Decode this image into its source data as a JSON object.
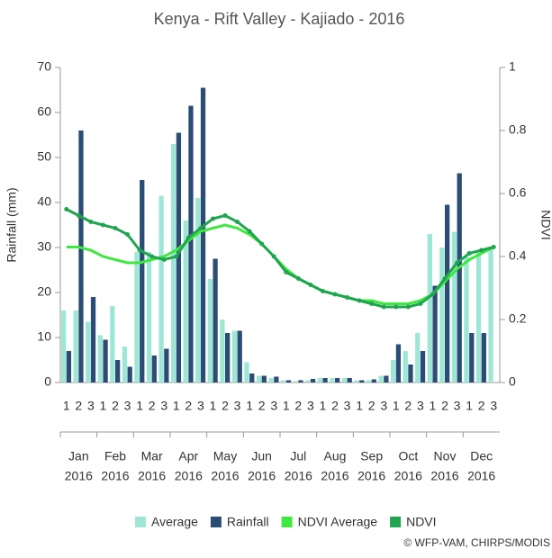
{
  "chart_data": {
    "type": "bar-line",
    "title": "Kenya - Rift Valley - Kajiado - 2016",
    "y_label": "Rainfall (mm)",
    "y2_label": "NDVI",
    "categories": [
      "1",
      "2",
      "3",
      "1",
      "2",
      "3",
      "1",
      "2",
      "3",
      "1",
      "2",
      "3",
      "1",
      "2",
      "3",
      "1",
      "2",
      "3",
      "1",
      "2",
      "3",
      "1",
      "2",
      "3",
      "1",
      "2",
      "3",
      "1",
      "2",
      "3",
      "1",
      "2",
      "3",
      "1",
      "2",
      "3"
    ],
    "months": [
      {
        "month": "Jan",
        "year": "2016"
      },
      {
        "month": "Feb",
        "year": "2016"
      },
      {
        "month": "Mar",
        "year": "2016"
      },
      {
        "month": "Apr",
        "year": "2016"
      },
      {
        "month": "May",
        "year": "2016"
      },
      {
        "month": "Jun",
        "year": "2016"
      },
      {
        "month": "Jul",
        "year": "2016"
      },
      {
        "month": "Aug",
        "year": "2016"
      },
      {
        "month": "Sep",
        "year": "2016"
      },
      {
        "month": "Oct",
        "year": "2016"
      },
      {
        "month": "Nov",
        "year": "2016"
      },
      {
        "month": "Dec",
        "year": "2016"
      }
    ],
    "series": [
      {
        "name": "Average",
        "kind": "bar",
        "color": "#9ee6d6",
        "values": [
          16,
          16,
          13.5,
          10.5,
          17,
          8,
          29,
          29,
          41.5,
          53,
          36,
          41,
          23,
          14,
          11.5,
          4.5,
          1.5,
          1,
          0.5,
          0.3,
          0.5,
          1,
          1,
          1,
          0.5,
          0.5,
          1.5,
          5,
          7,
          11,
          33,
          30,
          33.5,
          28,
          29,
          30
        ]
      },
      {
        "name": "Rainfall",
        "kind": "bar",
        "color": "#2b4c74",
        "values": [
          7,
          56,
          19,
          9.5,
          5,
          3.5,
          45,
          6,
          7.5,
          55.5,
          61.5,
          65.5,
          27.5,
          11,
          11.5,
          2,
          1.5,
          1.3,
          0.5,
          0.5,
          0.8,
          1,
          1,
          1,
          0.5,
          0.7,
          1.5,
          8.5,
          4,
          7,
          21.5,
          39.5,
          46.5,
          11,
          11,
          null
        ]
      },
      {
        "name": "NDVI Average",
        "kind": "line",
        "axis": "y2",
        "color": "#3ee83e",
        "values": [
          0.43,
          0.43,
          0.42,
          0.4,
          0.39,
          0.38,
          0.38,
          0.39,
          0.4,
          0.42,
          0.45,
          0.48,
          0.49,
          0.5,
          0.49,
          0.47,
          0.44,
          0.4,
          0.36,
          0.33,
          0.31,
          0.29,
          0.28,
          0.27,
          0.26,
          0.26,
          0.25,
          0.25,
          0.25,
          0.26,
          0.28,
          0.32,
          0.36,
          0.39,
          0.41,
          0.43
        ]
      },
      {
        "name": "NDVI",
        "kind": "line",
        "axis": "y2",
        "color": "#1fa550",
        "markers": true,
        "values": [
          0.55,
          0.53,
          0.51,
          0.5,
          0.49,
          0.47,
          0.42,
          0.4,
          0.39,
          0.4,
          0.46,
          0.49,
          0.52,
          0.53,
          0.51,
          0.48,
          0.44,
          0.4,
          0.35,
          0.33,
          0.31,
          0.29,
          0.28,
          0.27,
          0.26,
          0.25,
          0.24,
          0.24,
          0.24,
          0.25,
          0.28,
          0.33,
          0.38,
          0.41,
          0.42,
          0.43
        ]
      }
    ],
    "ylim": [
      0,
      70
    ],
    "yticks": [
      0,
      10,
      20,
      30,
      40,
      50,
      60,
      70
    ],
    "y2lim": [
      0,
      1
    ],
    "y2ticks": [
      0,
      0.2,
      0.4,
      0.6,
      0.8,
      1
    ],
    "legend": "bottom",
    "credit": "© WFP-VAM, CHIRPS/MODIS"
  }
}
